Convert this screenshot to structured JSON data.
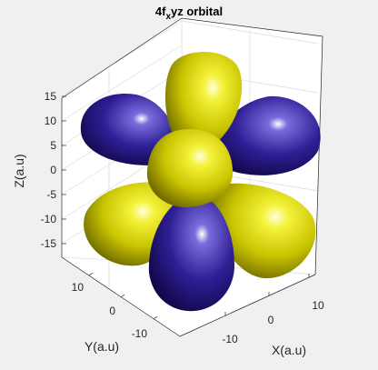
{
  "chart_data": {
    "type": "isosurface",
    "title_main": "4f",
    "title_sub": "x",
    "title_rest": "yz orbital",
    "xlabel": "X(a.u)",
    "ylabel": "Y(a.u)",
    "zlabel": "Z(a.u)",
    "xticks": [
      -10,
      0,
      10
    ],
    "yticks": [
      10,
      0,
      -10
    ],
    "zticks": [
      15,
      10,
      5,
      0,
      -5,
      -10,
      -15
    ],
    "xlim": [
      -18,
      18
    ],
    "ylim": [
      -18,
      18
    ],
    "zlim": [
      -18,
      18
    ],
    "grid": true,
    "colors": {
      "positive": "#e8e800",
      "negative": "#2b1a8c",
      "background": "#f0f0f0",
      "axes": "#ffffff"
    },
    "lobes": [
      {
        "sign": "negative",
        "position": "upper-left"
      },
      {
        "sign": "positive",
        "position": "upper-center"
      },
      {
        "sign": "negative",
        "position": "upper-right"
      },
      {
        "sign": "positive",
        "position": "lower-left"
      },
      {
        "sign": "negative",
        "position": "lower-center"
      },
      {
        "sign": "positive",
        "position": "lower-right"
      },
      {
        "sign": "positive",
        "position": "front-center"
      }
    ]
  }
}
